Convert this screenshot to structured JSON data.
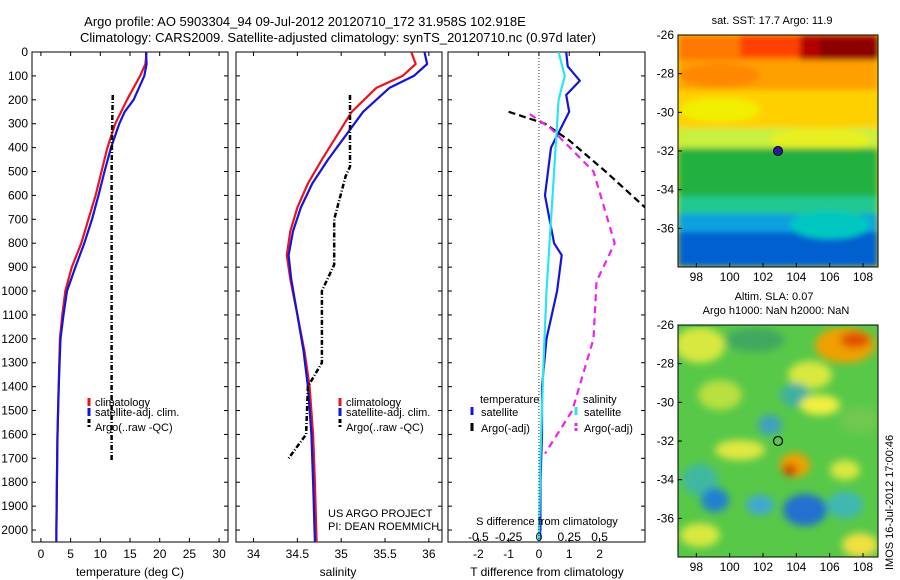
{
  "header": {
    "line1": "Argo profile: AO 5903304_94 09-Jul-2012 20120710_172 31.958S 102.918E",
    "line2": "Climatology: CARS2009. Satellite-adjusted climatology: synTS_20120710.nc (0.97d later)"
  },
  "side_stamp": "IMOS 16-Jul-2012 17:00:46",
  "colors": {
    "climatology": "#e8141e",
    "satellite": "#1414dc",
    "satellite_s": "#28e6f0",
    "argo": "#000000",
    "argo_s": "#ee22ee"
  },
  "depth_axis": {
    "ticks": [
      0,
      100,
      200,
      300,
      400,
      500,
      600,
      700,
      800,
      900,
      1000,
      1100,
      1200,
      1300,
      1400,
      1500,
      1600,
      1700,
      1800,
      1900,
      2000
    ],
    "range": [
      0,
      2050
    ]
  },
  "chart_data": [
    {
      "type": "line",
      "id": "temperature",
      "xlabel": "temperature (deg C)",
      "xlim": [
        -1.5,
        31.5
      ],
      "xticks": [
        0,
        5,
        10,
        15,
        20,
        25,
        30
      ],
      "legend": [
        "climatology",
        "satellite-adj. clim.",
        "Argo(..raw -QC)"
      ],
      "series": [
        {
          "name": "climatology",
          "x": [
            17.8,
            17.6,
            16.7,
            14.5,
            13.5,
            12.5,
            11.2,
            10.2,
            9.2,
            8.0,
            6.8,
            5.2,
            4.1,
            3.6,
            3.2,
            3.0,
            2.9,
            2.8,
            2.7,
            2.6,
            2.6
          ],
          "depth": [
            0,
            50,
            100,
            200,
            250,
            300,
            400,
            500,
            600,
            700,
            800,
            900,
            1000,
            1100,
            1200,
            1400,
            1500,
            1600,
            1800,
            2000,
            2050
          ]
        },
        {
          "name": "satellite-adj. clim.",
          "x": [
            17.7,
            17.8,
            17.4,
            15.6,
            14.1,
            13.2,
            11.8,
            10.7,
            9.7,
            8.6,
            7.3,
            5.8,
            4.4,
            3.8,
            3.3,
            3.0,
            2.9,
            2.8,
            2.7,
            2.6,
            2.6
          ],
          "depth": [
            0,
            50,
            100,
            200,
            250,
            300,
            400,
            500,
            600,
            700,
            800,
            900,
            1000,
            1100,
            1200,
            1400,
            1500,
            1600,
            1800,
            2000,
            2050
          ]
        },
        {
          "name": "Argo(..raw -QC)",
          "x": [
            12.1,
            12.0,
            11.9,
            11.9,
            11.9,
            11.9,
            11.9,
            11.9,
            11.9,
            11.9
          ],
          "depth": [
            180,
            300,
            500,
            700,
            900,
            1100,
            1300,
            1400,
            1600,
            1710
          ]
        }
      ]
    },
    {
      "type": "line",
      "id": "salinity",
      "xlabel": "salinity",
      "xlim": [
        33.8,
        36.15
      ],
      "xticks": [
        34,
        34.5,
        35,
        35.5,
        36
      ],
      "legend": [
        "climatology",
        "satellite-adj. clim.",
        "Argo(..raw -QC)"
      ],
      "series": [
        {
          "name": "climatology",
          "x": [
            35.8,
            35.85,
            35.7,
            35.4,
            35.12,
            34.95,
            34.78,
            34.62,
            34.5,
            34.42,
            34.38,
            34.42,
            34.5,
            34.58,
            34.64,
            34.68,
            34.7,
            34.72
          ],
          "depth": [
            0,
            50,
            100,
            150,
            250,
            350,
            450,
            550,
            650,
            750,
            850,
            950,
            1100,
            1250,
            1400,
            1600,
            1800,
            2050
          ]
        },
        {
          "name": "satellite-adj. clim.",
          "x": [
            35.95,
            35.98,
            35.83,
            35.55,
            35.25,
            35.05,
            34.85,
            34.67,
            34.54,
            34.45,
            34.4,
            34.43,
            34.5,
            34.57,
            34.62,
            34.66,
            34.68,
            34.7
          ],
          "depth": [
            0,
            50,
            100,
            150,
            250,
            350,
            450,
            550,
            650,
            750,
            850,
            950,
            1100,
            1250,
            1400,
            1600,
            1800,
            2050
          ]
        },
        {
          "name": "Argo(..raw -QC)",
          "x": [
            35.1,
            35.1,
            35.05,
            34.92,
            34.92,
            34.78,
            34.78,
            34.62,
            34.6,
            34.4
          ],
          "depth": [
            180,
            480,
            520,
            700,
            890,
            1000,
            1300,
            1400,
            1600,
            1700
          ]
        }
      ]
    },
    {
      "type": "line",
      "id": "difference",
      "xlabel": "T difference from climatology",
      "xlabel_top": "S difference from climatology",
      "xlim": [
        -3.0,
        3.5
      ],
      "xticks": [
        -2,
        -1,
        0,
        1,
        2
      ],
      "xticks_top": [
        -0.5,
        -0.25,
        0,
        0.25,
        0.5
      ],
      "legend_groups": [
        {
          "title": "temperature",
          "entries": [
            "satellite",
            "Argo(-adj)"
          ]
        },
        {
          "title": "salinity",
          "entries": [
            "satellite",
            "Argo(-adj)"
          ]
        }
      ],
      "series": [
        {
          "name": "temperature satellite",
          "x": [
            0.9,
            0.95,
            1.35,
            0.9,
            1.0,
            0.4,
            0.2,
            0.35,
            0.5,
            0.75,
            0.6,
            0.25,
            0.1,
            0.1,
            0.05,
            0.05,
            0.0
          ],
          "depth": [
            0,
            60,
            120,
            180,
            250,
            400,
            600,
            700,
            800,
            850,
            1000,
            1200,
            1400,
            1600,
            1800,
            2000,
            2050
          ]
        },
        {
          "name": "temperature Argo(-adj)",
          "x": [
            -1.0,
            0.2,
            1.0,
            2.2,
            3.5
          ],
          "depth": [
            250,
            300,
            370,
            500,
            650
          ]
        },
        {
          "name": "salinity satellite",
          "x": [
            0.65,
            0.85,
            0.65,
            0.55,
            0.45,
            0.35,
            0.25,
            0.15,
            0.05,
            0.0
          ],
          "depth": [
            0,
            100,
            200,
            400,
            600,
            800,
            1000,
            1300,
            1700,
            2050
          ]
        },
        {
          "name": "salinity Argo(-adj)",
          "x": [
            -0.3,
            0.4,
            1.8,
            2.5,
            1.9,
            1.8,
            1.1,
            0.2
          ],
          "depth": [
            260,
            320,
            500,
            800,
            960,
            1200,
            1500,
            1680
          ]
        }
      ]
    }
  ],
  "notes": {
    "line1": "US ARGO PROJECT",
    "line2": "PI: DEAN ROEMMICH"
  },
  "maps": [
    {
      "id": "sst",
      "title": "sat. SST: 17.7 Argo: 11.9",
      "subtitle": "",
      "x_ticks": [
        98,
        100,
        102,
        104,
        106,
        108
      ],
      "y_ticks": [
        -26,
        -28,
        -30,
        -32,
        -34,
        -36
      ],
      "lon_range": [
        96.9,
        108.9
      ],
      "lat_range": [
        -26.0,
        -38.0
      ],
      "marker": {
        "lon": 102.9,
        "lat": -32.0
      }
    },
    {
      "id": "sla",
      "title": "Altim. SLA: 0.07",
      "subtitle": "Argo h1000: NaN h2000: NaN",
      "x_ticks": [
        98,
        100,
        102,
        104,
        106,
        108
      ],
      "y_ticks": [
        -26,
        -28,
        -30,
        -32,
        -34,
        -36
      ],
      "lon_range": [
        96.9,
        108.9
      ],
      "lat_range": [
        -26.0,
        -38.0
      ],
      "marker": {
        "lon": 102.9,
        "lat": -32.0
      }
    }
  ]
}
